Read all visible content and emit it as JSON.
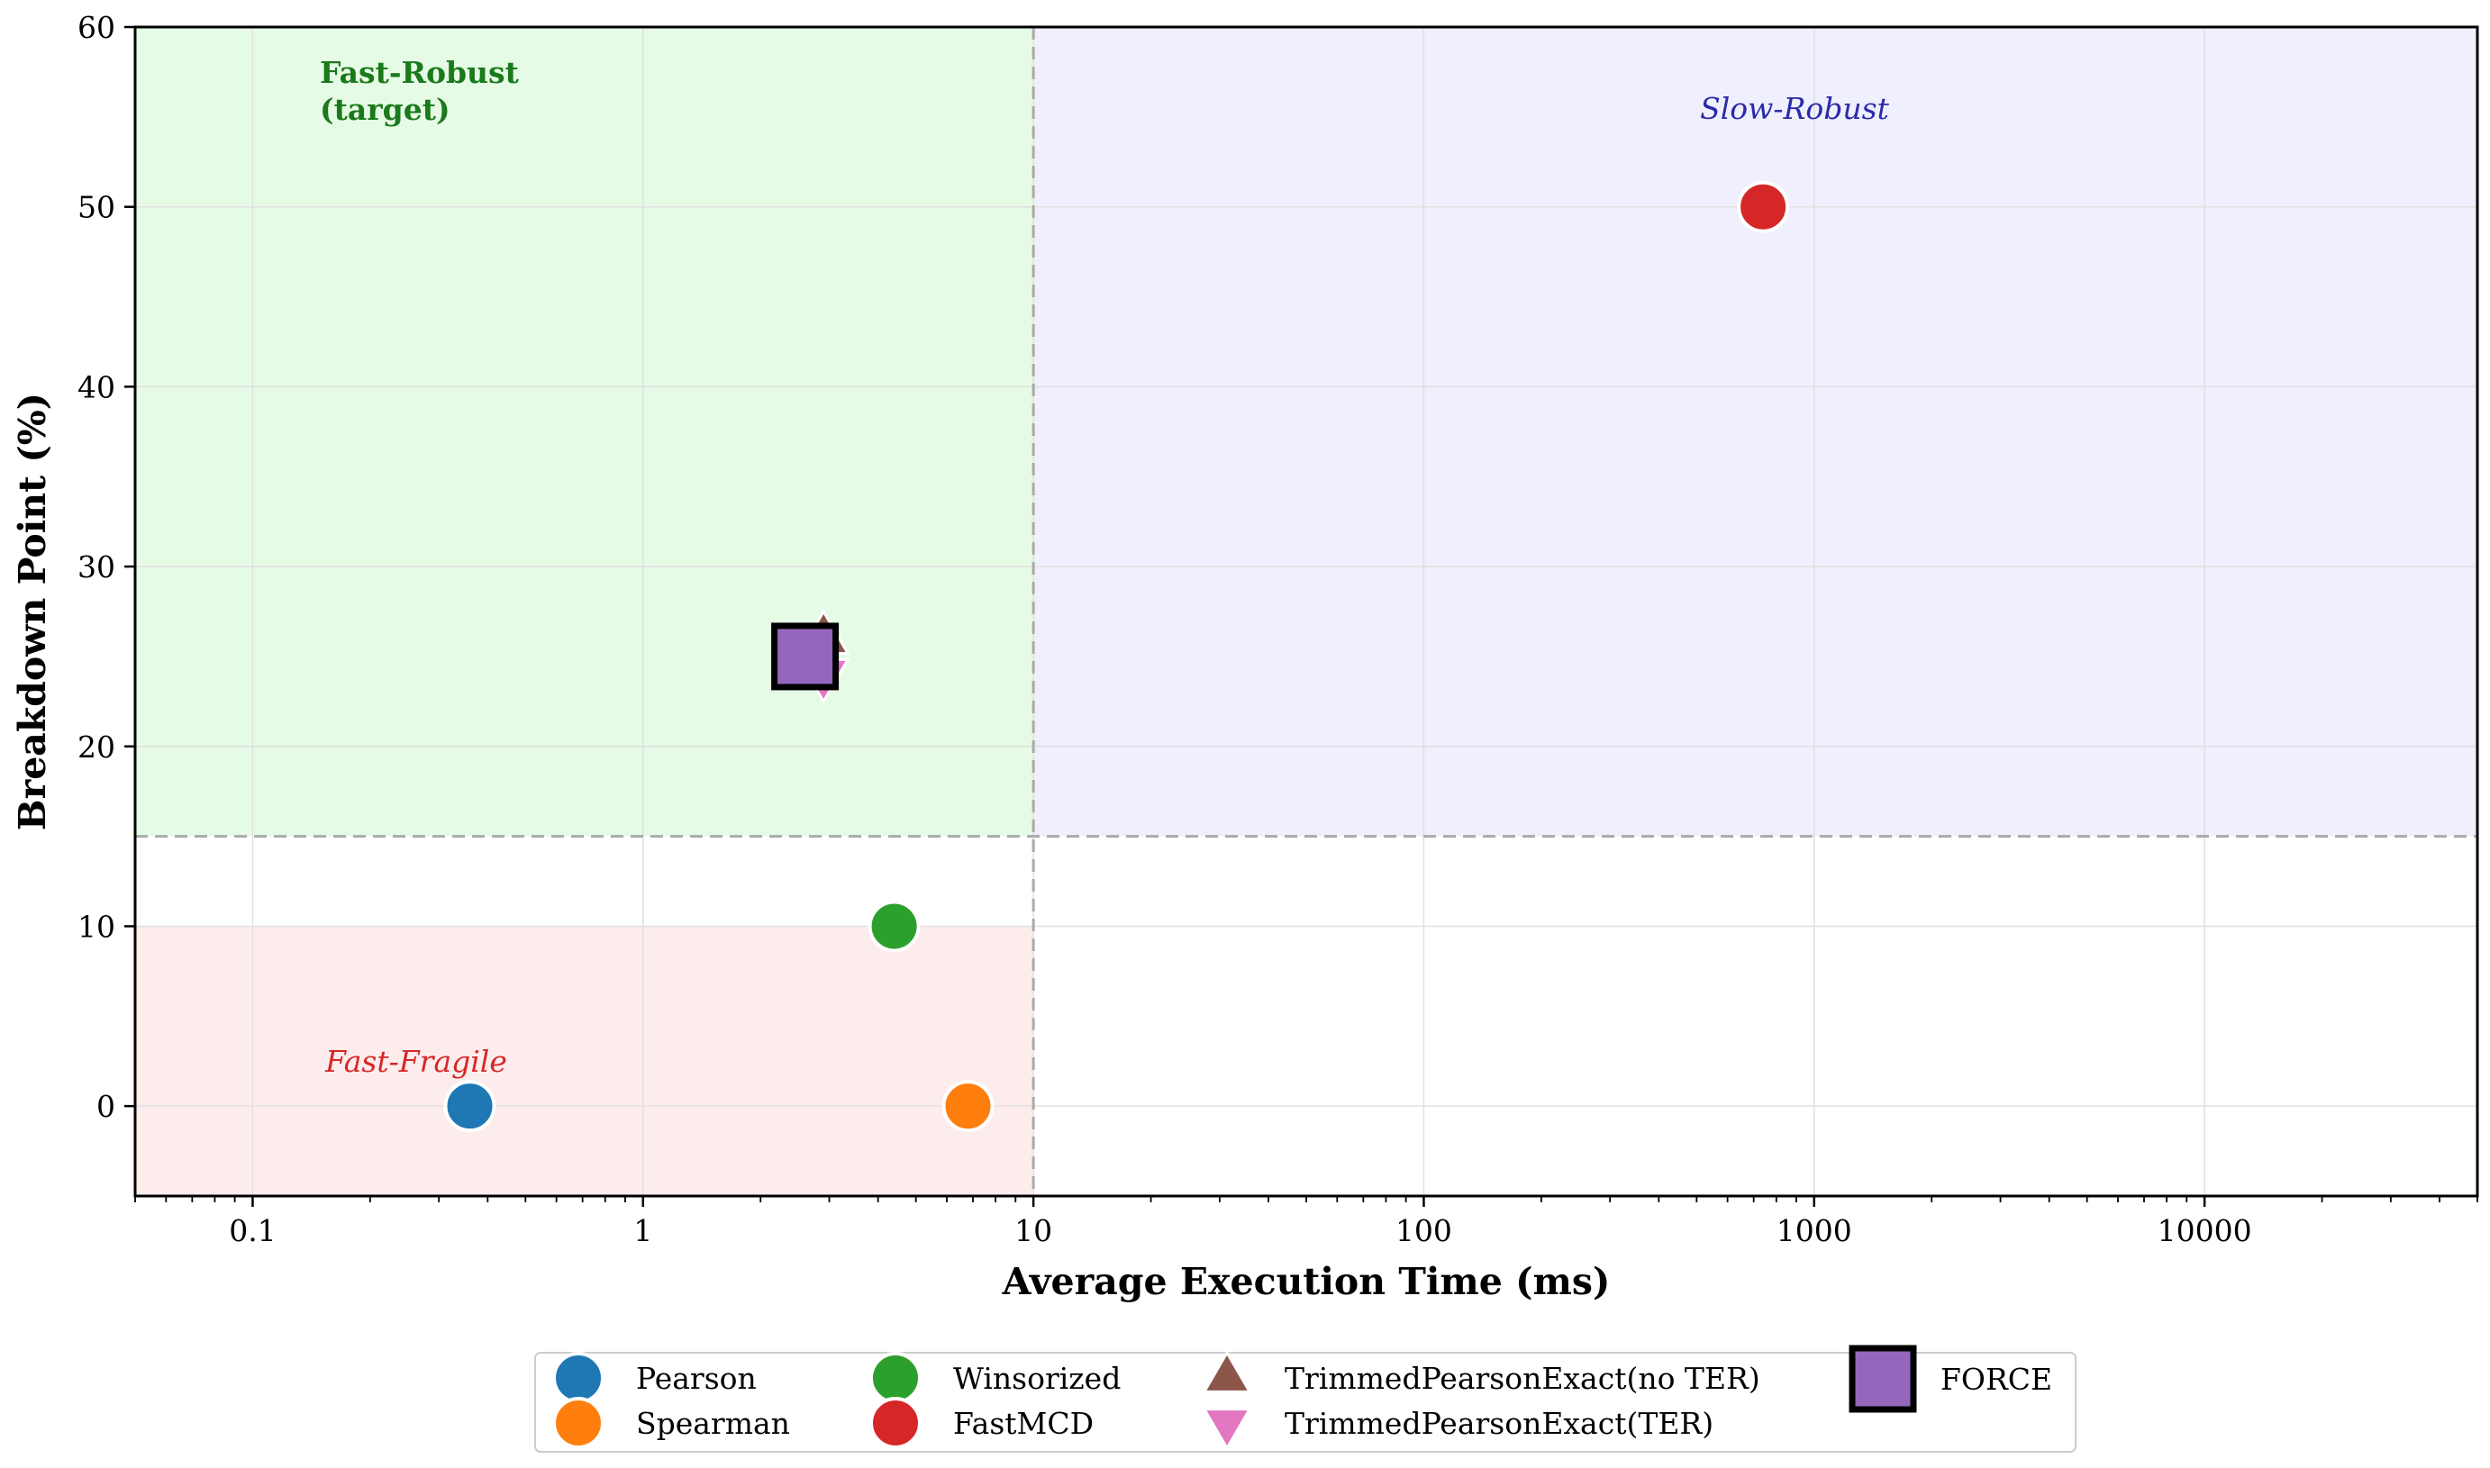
{
  "colors": {
    "fast_robust_region": "#e6fbe6",
    "slow_robust_region": "#efeffd",
    "fast_fragile_region": "#fdecec",
    "fast_robust_label": "#1a7a1a",
    "slow_robust_label": "#2a2aaa",
    "fast_fragile_label": "#d62728",
    "threshold_line": "#aaaaaa",
    "grid": "#e0e0e0"
  },
  "chart_data": {
    "type": "scatter",
    "title": "",
    "xlabel": "Average Execution Time (ms)",
    "ylabel": "Breakdown Point (%)",
    "xscale": "log",
    "xlim": [
      0.05,
      50000
    ],
    "ylim": [
      -5,
      60
    ],
    "x_ticks": [
      0.1,
      1,
      10,
      100,
      1000,
      10000
    ],
    "x_tick_labels": [
      "0.1",
      "1",
      "10",
      "100",
      "1000",
      "10000"
    ],
    "y_ticks": [
      0,
      10,
      20,
      30,
      40,
      50,
      60
    ],
    "y_tick_labels": [
      "0",
      "10",
      "20",
      "30",
      "40",
      "50",
      "60"
    ],
    "grid": true,
    "thresholds": {
      "x": 10,
      "y": 15
    },
    "regions": [
      {
        "name": "fast-robust",
        "label": [
          "Fast-Robust",
          "(target)"
        ],
        "x_range": [
          0.05,
          10
        ],
        "y_range": [
          15,
          60
        ],
        "style": "bold"
      },
      {
        "name": "slow-robust",
        "label": [
          "Slow-Robust"
        ],
        "x_range": [
          10,
          50000
        ],
        "y_range": [
          15,
          60
        ],
        "style": "italic"
      },
      {
        "name": "fast-fragile",
        "label": [
          "Fast-Fragile"
        ],
        "x_range": [
          0.05,
          10
        ],
        "y_range": [
          -5,
          10
        ],
        "style": "italic"
      }
    ],
    "legend_position": "bottom-center",
    "series": [
      {
        "name": "Pearson",
        "marker": "circle",
        "color": "#1f77b4",
        "points": [
          {
            "x": 0.36,
            "y": 0
          }
        ]
      },
      {
        "name": "Spearman",
        "marker": "circle",
        "color": "#ff7f0e",
        "points": [
          {
            "x": 6.8,
            "y": 0
          }
        ]
      },
      {
        "name": "Winsorized",
        "marker": "circle",
        "color": "#2ca02c",
        "points": [
          {
            "x": 4.4,
            "y": 10
          }
        ]
      },
      {
        "name": "FastMCD",
        "marker": "circle",
        "color": "#d62728",
        "points": [
          {
            "x": 740,
            "y": 50
          }
        ]
      },
      {
        "name": "TrimmedPearsonExact(no TER)",
        "marker": "triangle-up",
        "color": "#8c564b",
        "points": [
          {
            "x": 2.9,
            "y": 26
          }
        ]
      },
      {
        "name": "TrimmedPearsonExact(TER)",
        "marker": "triangle-down",
        "color": "#e377c2",
        "points": [
          {
            "x": 2.9,
            "y": 24
          }
        ]
      },
      {
        "name": "FORCE",
        "marker": "square",
        "color": "#9467bd",
        "points": [
          {
            "x": 2.6,
            "y": 25
          }
        ]
      }
    ]
  }
}
